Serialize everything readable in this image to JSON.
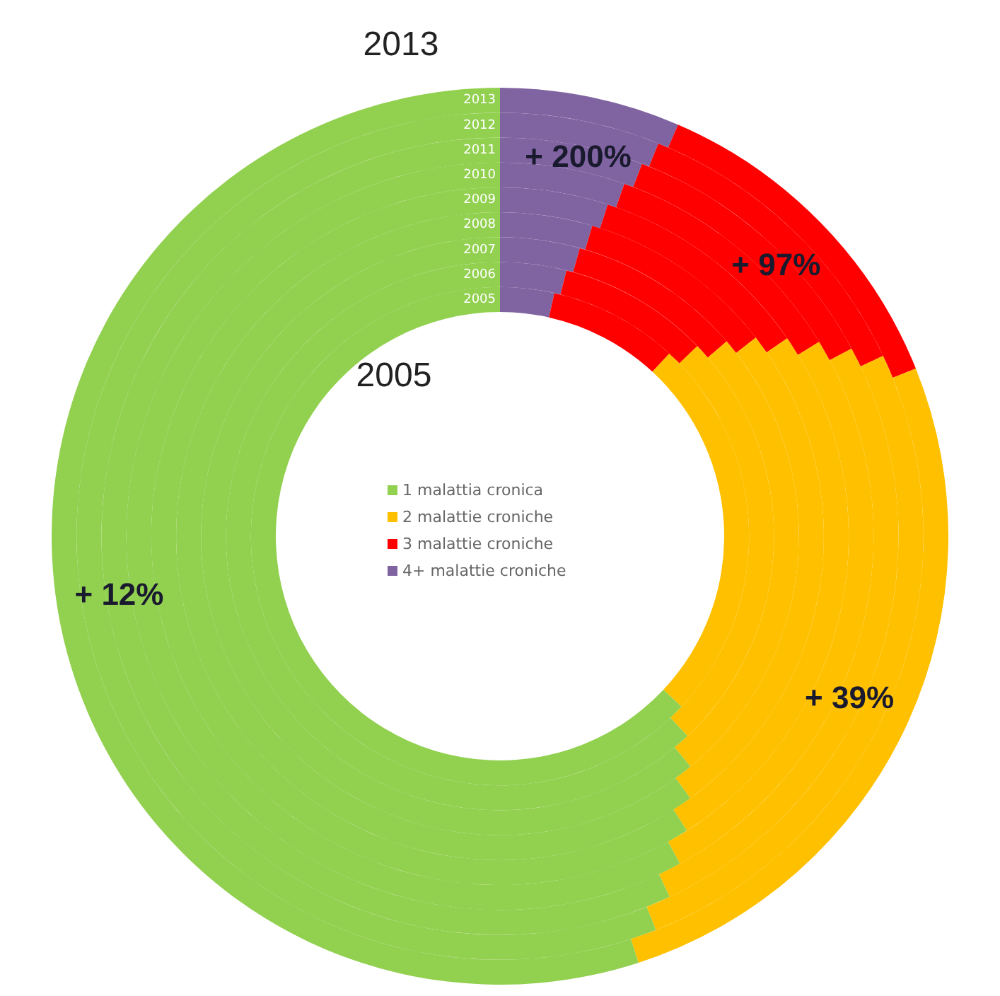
{
  "chart_data": {
    "type": "donut",
    "categories": [
      "1 malattia cronica",
      "2 malattie croniche",
      "3 malattie croniche",
      "4+ malattie croniche"
    ],
    "colors": [
      "#92d050",
      "#ffc000",
      "#ff0000",
      "#8064a2"
    ],
    "series": [
      {
        "name": "2005",
        "values": [
          63.0,
          25.1,
          8.4,
          3.5
        ]
      },
      {
        "name": "2006",
        "values": [
          62.0,
          25.2,
          8.9,
          3.9
        ]
      },
      {
        "name": "2007",
        "values": [
          61.0,
          25.3,
          9.4,
          4.3
        ]
      },
      {
        "name": "2008",
        "values": [
          60.0,
          25.5,
          9.9,
          4.6
        ]
      },
      {
        "name": "2009",
        "values": [
          59.0,
          25.6,
          10.4,
          5.0
        ]
      },
      {
        "name": "2010",
        "values": [
          58.0,
          25.7,
          10.9,
          5.4
        ]
      },
      {
        "name": "2011",
        "values": [
          57.0,
          25.8,
          11.4,
          5.8
        ]
      },
      {
        "name": "2012",
        "values": [
          56.0,
          26.0,
          11.9,
          6.1
        ]
      },
      {
        "name": "2013",
        "values": [
          55.0,
          26.1,
          12.4,
          6.5
        ]
      }
    ],
    "annotations": [
      "2013",
      "2005",
      {
        "text": "+ 12%",
        "x": "1 malattia cronica"
      },
      {
        "text": "+ 39%",
        "x": "2 malattie croniche"
      },
      {
        "text": "+ 97%",
        "x": "3 malattie croniche"
      },
      {
        "text": "+ 200%",
        "x": "4+ malattie croniche"
      }
    ],
    "legend": "center"
  }
}
